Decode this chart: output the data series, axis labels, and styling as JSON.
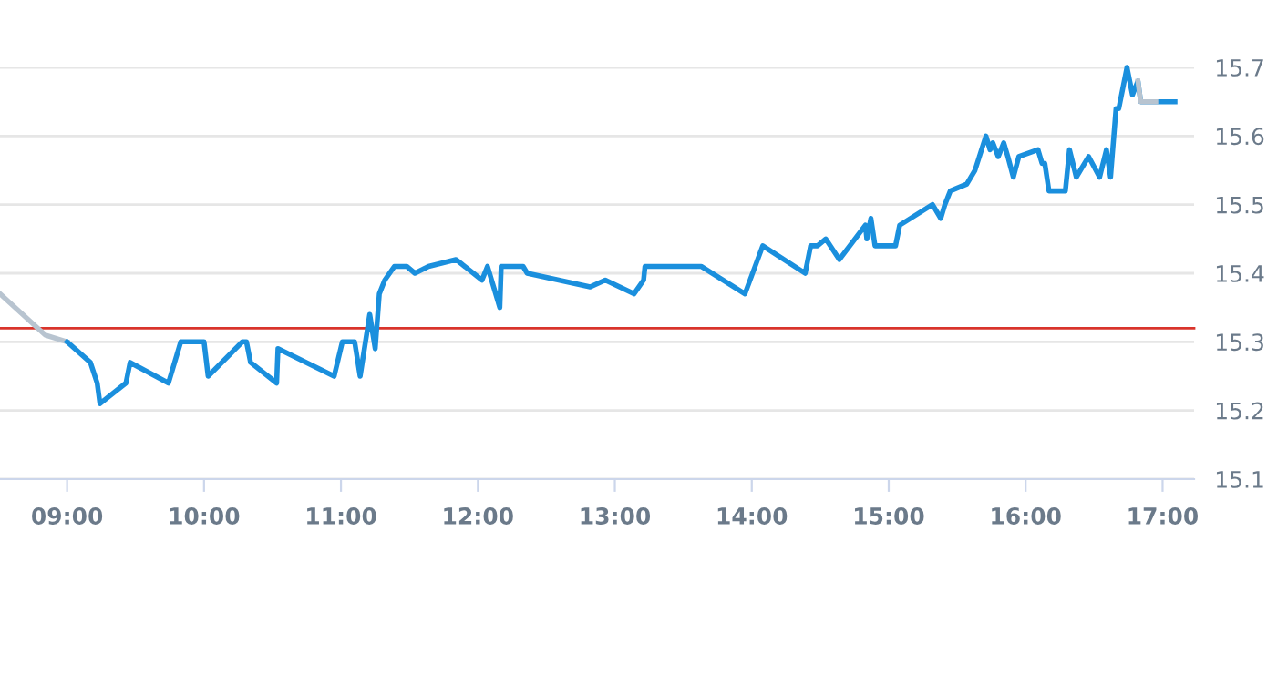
{
  "chart_data": {
    "type": "line",
    "xlim": [
      8.51,
      17.23
    ],
    "ylim": [
      15.1,
      15.7
    ],
    "xticks": [
      {
        "value": 9,
        "label": "09:00"
      },
      {
        "value": 10,
        "label": "10:00"
      },
      {
        "value": 11,
        "label": "11:00"
      },
      {
        "value": 12,
        "label": "12:00"
      },
      {
        "value": 13,
        "label": "13:00"
      },
      {
        "value": 14,
        "label": "14:00"
      },
      {
        "value": 15,
        "label": "15:00"
      },
      {
        "value": 16,
        "label": "16:00"
      },
      {
        "value": 17,
        "label": "17:00"
      }
    ],
    "yticks": [
      15.1,
      15.2,
      15.3,
      15.4,
      15.5,
      15.6,
      15.7
    ],
    "grid": "y",
    "legend": false,
    "marker": "none",
    "line_style": "solid",
    "ref_lines": [
      {
        "axis": "y",
        "value": 15.32,
        "label": null,
        "color": "#d9342b"
      }
    ],
    "series": [
      {
        "color": "#b8c4d0",
        "x": [
          8.51,
          8.84,
          9.0
        ],
        "values": [
          15.37,
          15.31,
          15.3
        ]
      },
      {
        "color": "#1a8fdd",
        "x": [
          9.0,
          9.17,
          9.22,
          9.24,
          9.43,
          9.46,
          9.74,
          9.83,
          10.0,
          10.03,
          10.28,
          10.31,
          10.34,
          10.53,
          10.54,
          10.95,
          11.01,
          11.1,
          11.14,
          11.21,
          11.25,
          11.28,
          11.32,
          11.39,
          11.48,
          11.54,
          11.64,
          11.84,
          12.03,
          12.07,
          12.16,
          12.17,
          12.33,
          12.36,
          12.82,
          12.93,
          13.14,
          13.21,
          13.22,
          13.63,
          13.95,
          14.08,
          14.39,
          14.43,
          14.48,
          14.54,
          14.64,
          14.83,
          14.84,
          14.87,
          14.9,
          15.05,
          15.08,
          15.32,
          15.38,
          15.41,
          15.45,
          15.57,
          15.63,
          15.71,
          15.74,
          15.76,
          15.8,
          15.84,
          15.87,
          15.91,
          15.95,
          16.09,
          16.12,
          16.14,
          16.17,
          16.29,
          16.32,
          16.37,
          16.46,
          16.54,
          16.59,
          16.62,
          16.66,
          16.68,
          16.74,
          16.78,
          16.82,
          16.84,
          16.95,
          17.09
        ],
        "values": [
          15.3,
          15.27,
          15.24,
          15.21,
          15.24,
          15.27,
          15.24,
          15.3,
          15.3,
          15.25,
          15.3,
          15.3,
          15.27,
          15.24,
          15.29,
          15.25,
          15.3,
          15.3,
          15.25,
          15.34,
          15.29,
          15.37,
          15.39,
          15.41,
          15.41,
          15.4,
          15.41,
          15.42,
          15.39,
          15.41,
          15.35,
          15.41,
          15.41,
          15.4,
          15.38,
          15.39,
          15.37,
          15.39,
          15.41,
          15.41,
          15.37,
          15.44,
          15.4,
          15.44,
          15.44,
          15.45,
          15.42,
          15.47,
          15.45,
          15.48,
          15.44,
          15.44,
          15.47,
          15.5,
          15.48,
          15.5,
          15.52,
          15.53,
          15.55,
          15.6,
          15.58,
          15.59,
          15.57,
          15.59,
          15.57,
          15.54,
          15.57,
          15.58,
          15.56,
          15.56,
          15.52,
          15.52,
          15.58,
          15.54,
          15.57,
          15.54,
          15.58,
          15.54,
          15.64,
          15.64,
          15.7,
          15.66,
          15.68,
          15.65,
          15.65,
          15.65
        ]
      },
      {
        "color": "#b8c4d0",
        "x": [
          16.82,
          16.84,
          16.95
        ],
        "values": [
          15.68,
          15.65,
          15.65
        ]
      }
    ]
  }
}
